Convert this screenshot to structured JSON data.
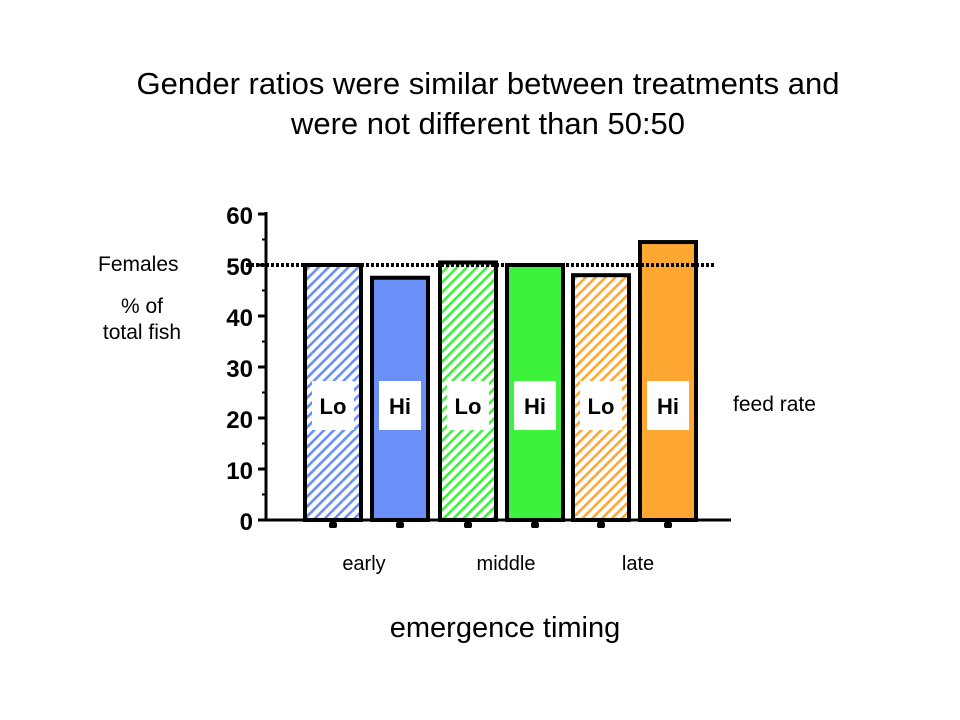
{
  "title": {
    "line1": "Gender ratios were similar between treatments and",
    "line2": "were not different than 50:50"
  },
  "y_axis": {
    "label_line1": "Females",
    "label_line2": "% of",
    "label_line3": "total fish"
  },
  "x_axis": {
    "title": "emergence timing",
    "groups": [
      "early",
      "middle",
      "late"
    ]
  },
  "legend_note": "feed rate",
  "colors": {
    "blue": "#6a8ff7",
    "green": "#3df23d",
    "orange": "#ffa733",
    "axis": "#000000",
    "label_box": "#ffffff"
  },
  "chart_data": {
    "type": "bar",
    "title": "Gender ratios were similar between treatments and were not different than 50:50",
    "xlabel": "emergence timing",
    "ylabel": "Females % of total fish",
    "ylim": [
      0,
      60
    ],
    "yticks": [
      0,
      10,
      20,
      30,
      40,
      50,
      60
    ],
    "reference_line": 50,
    "groups": [
      "early",
      "middle",
      "late"
    ],
    "bars": [
      {
        "group": "early",
        "feed_rate": "Lo",
        "value": 50,
        "color": "#6a8ff7",
        "hatched": true
      },
      {
        "group": "early",
        "feed_rate": "Hi",
        "value": 47.5,
        "color": "#6a8ff7",
        "hatched": false
      },
      {
        "group": "middle",
        "feed_rate": "Lo",
        "value": 50.5,
        "color": "#3df23d",
        "hatched": true
      },
      {
        "group": "middle",
        "feed_rate": "Hi",
        "value": 50,
        "color": "#3df23d",
        "hatched": false
      },
      {
        "group": "late",
        "feed_rate": "Lo",
        "value": 48,
        "color": "#ffa733",
        "hatched": true
      },
      {
        "group": "late",
        "feed_rate": "Hi",
        "value": 54.5,
        "color": "#ffa733",
        "hatched": false
      }
    ]
  }
}
